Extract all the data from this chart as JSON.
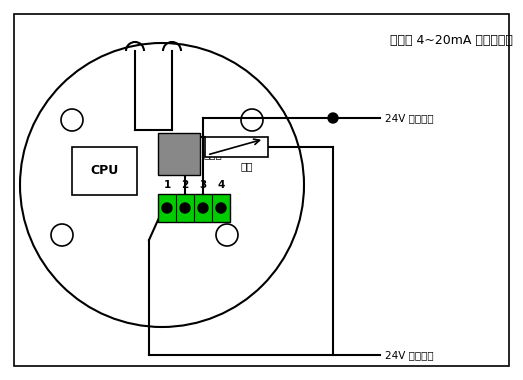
{
  "title": "三线制 4~20mA 接线示意图",
  "bg_color": "#ffffff",
  "border_color": "#000000",
  "label_cpu": "CPU",
  "label_sensor": "传感器",
  "label_terminal_nums": [
    "1",
    "2",
    "3",
    "4"
  ],
  "label_load": "负载",
  "label_24v_neg": "24V 电源负端",
  "label_24v_pos": "24V 电源正端",
  "terminal_color": "#00cc00",
  "sensor_color": "#888888",
  "line_color": "#000000",
  "font_size_title": 9,
  "font_size_labels": 7.5,
  "font_size_terminal": 7.5
}
